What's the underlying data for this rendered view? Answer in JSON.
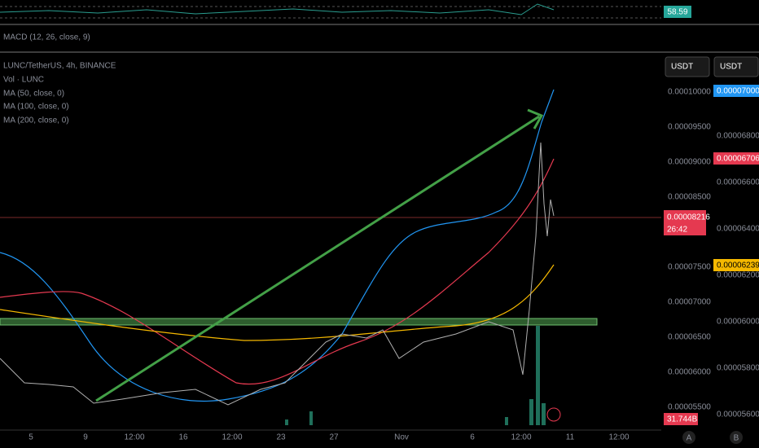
{
  "indicator": {
    "rsi_value": "58.59",
    "macd_label": "MACD (12, 26, close, 9)"
  },
  "legend": {
    "symbol": "LUNC/TetherUS, 4h, BINANCE",
    "volume": "Vol · LUNC",
    "ma": [
      "MA (50, close, 0)",
      "MA (100, close, 0)",
      "MA (200, close, 0)"
    ]
  },
  "currency_buttons": [
    "USDT",
    "USDT"
  ],
  "price_tags": {
    "blue": "0.00007000",
    "red": "0.00006706",
    "last": "0.00008216",
    "countdown": "26:42",
    "yellow": "0.00006239",
    "volume": "31.744B"
  },
  "left_axis": [
    "0.00010000",
    "0.00009500",
    "0.00009000",
    "0.00008500",
    "0.00007500",
    "0.00007000",
    "0.00006500",
    "0.00006000",
    "0.00005500"
  ],
  "right_axis": [
    "0.00006800",
    "0.00006600",
    "0.00006400",
    "0.00006200",
    "0.00006000",
    "0.00005800",
    "0.00005600"
  ],
  "time_axis": [
    "5",
    "9",
    "12:00",
    "16",
    "12:00",
    "23",
    "27",
    "Nov",
    "6",
    "12:00",
    "11",
    "12:00"
  ],
  "corner_buttons": [
    "A",
    "B"
  ]
}
